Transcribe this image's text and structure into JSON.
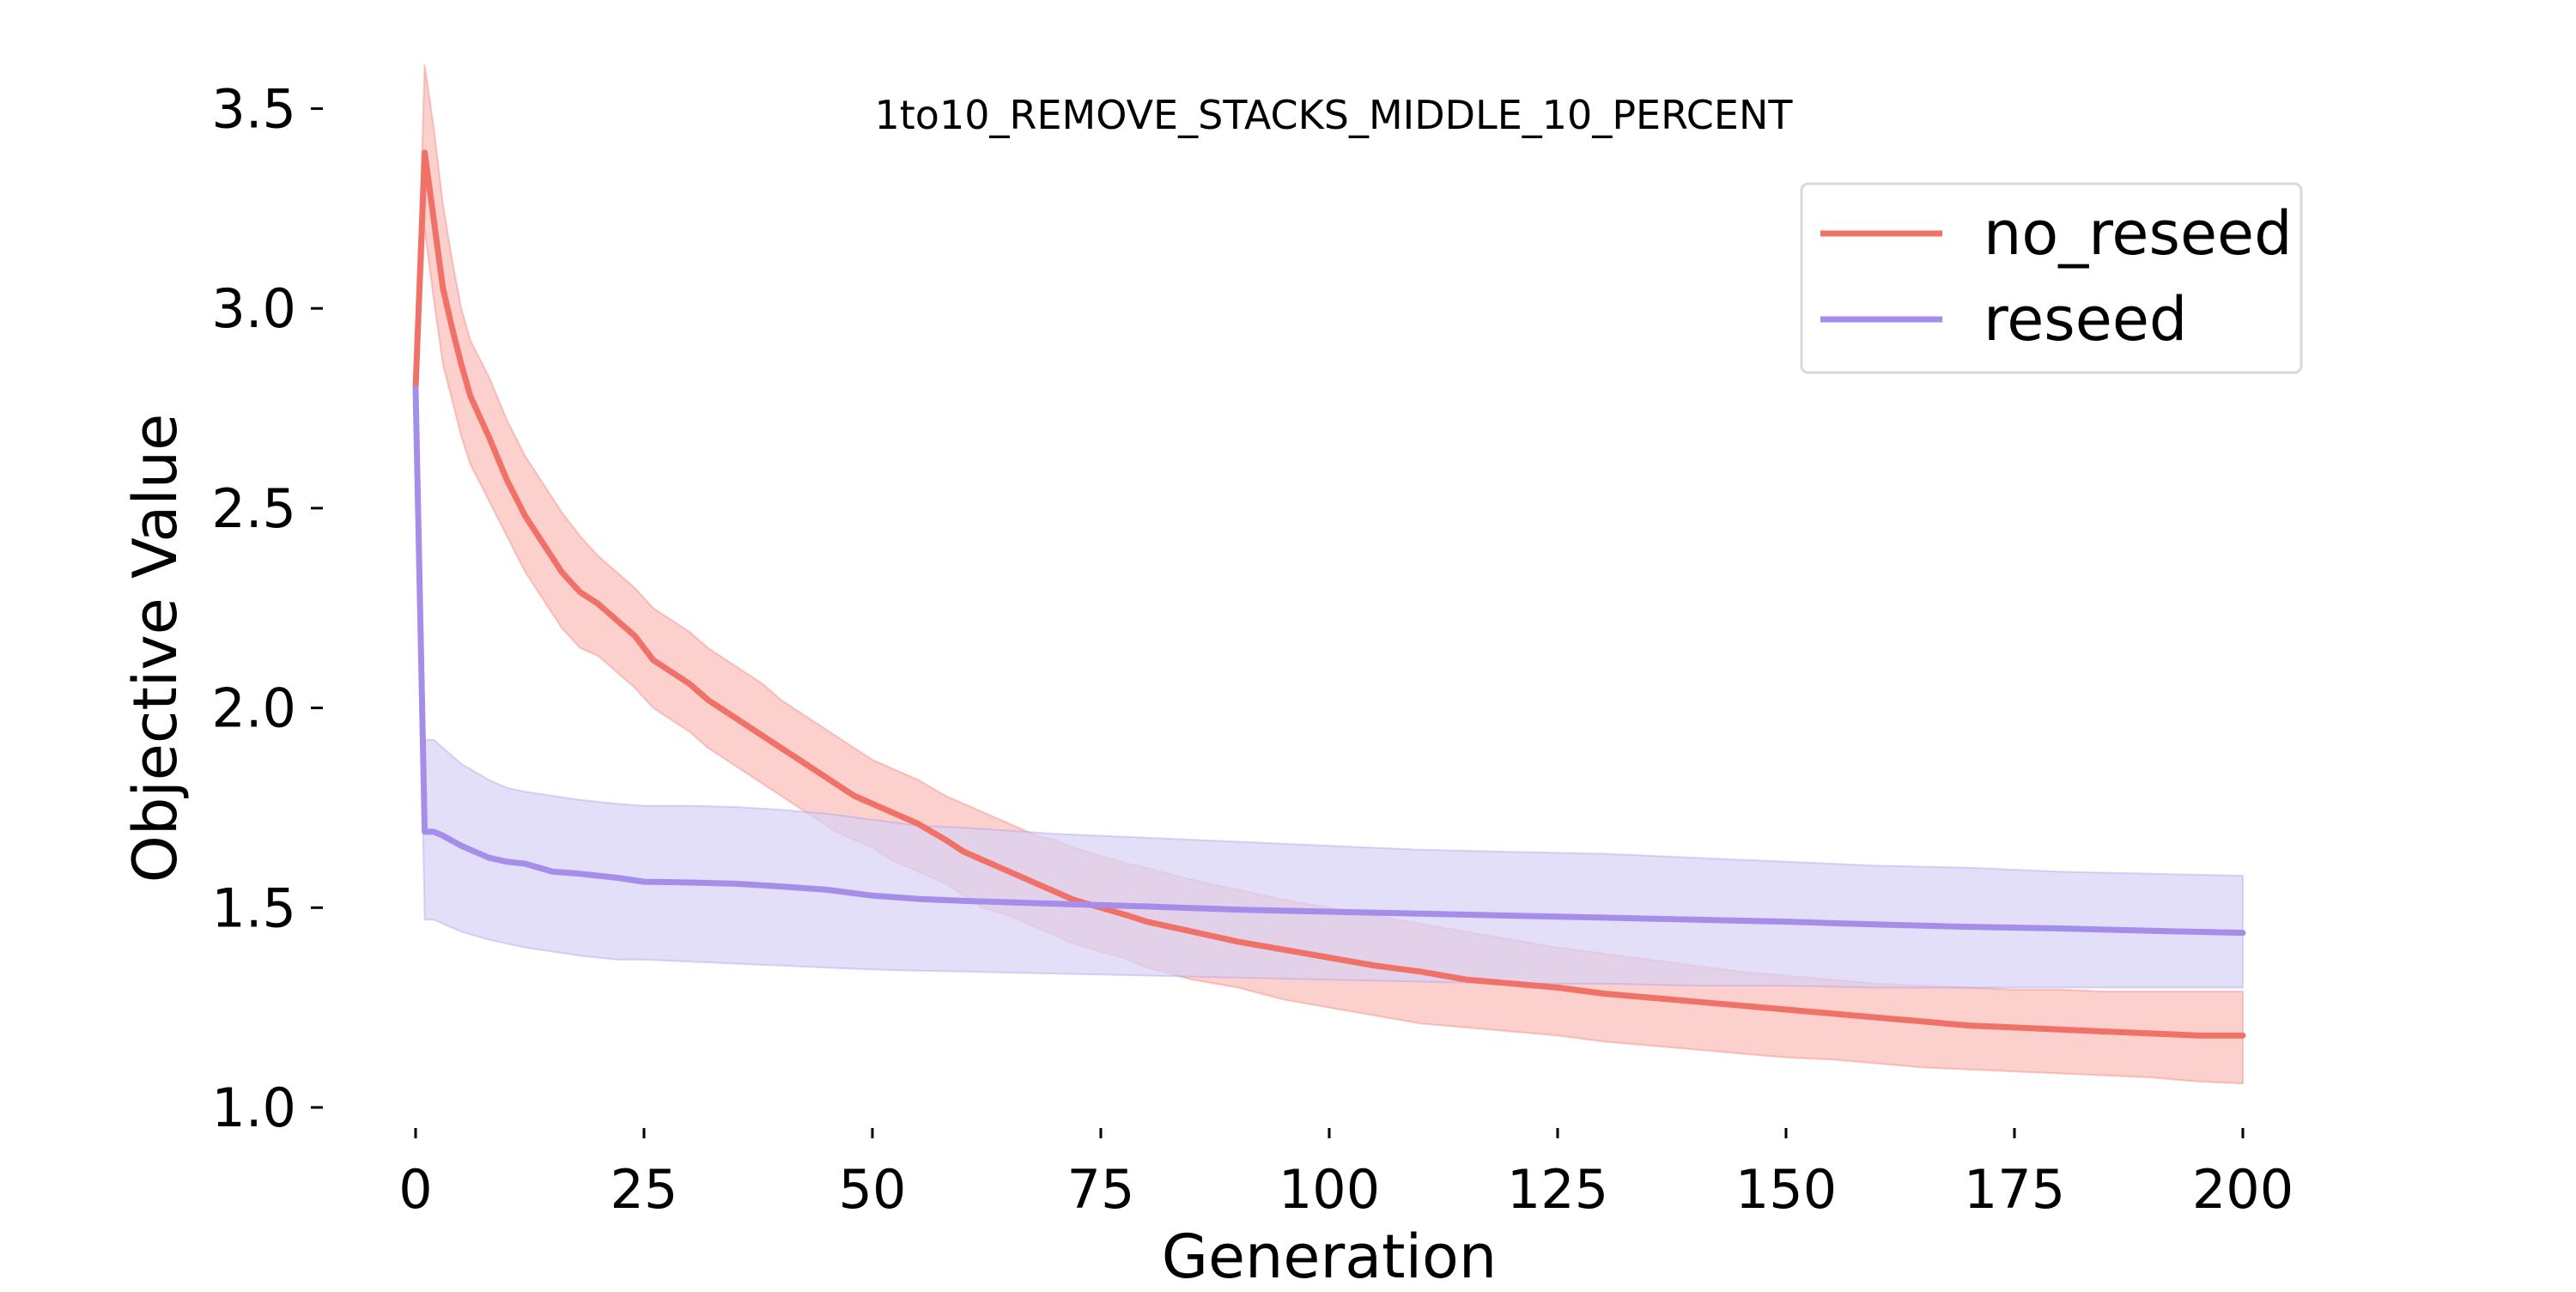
{
  "chart_data": {
    "type": "line",
    "title": "1to10_REMOVE_STACKS_MIDDLE_10_PERCENT",
    "xlabel": "Generation",
    "ylabel": "Objective Value",
    "xlim": [
      0,
      200
    ],
    "ylim": [
      1.0,
      3.6
    ],
    "xticks": [
      0,
      25,
      50,
      75,
      100,
      125,
      150,
      175,
      200
    ],
    "xtick_labels": [
      "0",
      "25",
      "50",
      "75",
      "100",
      "125",
      "150",
      "175",
      "200"
    ],
    "yticks": [
      1.0,
      1.5,
      2.0,
      2.5,
      3.0,
      3.5
    ],
    "ytick_labels": [
      "1.0",
      "1.5",
      "2.0",
      "2.5",
      "3.0",
      "3.5"
    ],
    "grid": false,
    "legend_position": "top-right",
    "series": [
      {
        "name": "no_reseed",
        "color": "#f07167",
        "band_color": "#fbbcb7",
        "x": [
          0,
          1,
          2,
          3,
          4,
          5,
          6,
          8,
          10,
          12,
          14,
          16,
          18,
          20,
          22,
          24,
          26,
          28,
          30,
          32,
          34,
          36,
          38,
          40,
          42,
          44,
          46,
          48,
          50,
          52,
          55,
          58,
          60,
          62,
          65,
          68,
          70,
          72,
          75,
          78,
          80,
          85,
          90,
          95,
          100,
          105,
          110,
          115,
          120,
          125,
          130,
          135,
          140,
          145,
          150,
          155,
          160,
          165,
          170,
          175,
          180,
          185,
          190,
          195,
          200
        ],
        "values": [
          2.8,
          3.39,
          3.22,
          3.05,
          2.95,
          2.86,
          2.78,
          2.68,
          2.57,
          2.48,
          2.41,
          2.34,
          2.29,
          2.26,
          2.22,
          2.18,
          2.12,
          2.09,
          2.06,
          2.02,
          1.99,
          1.96,
          1.93,
          1.9,
          1.87,
          1.84,
          1.81,
          1.78,
          1.76,
          1.74,
          1.71,
          1.67,
          1.64,
          1.62,
          1.59,
          1.56,
          1.54,
          1.52,
          1.5,
          1.48,
          1.465,
          1.44,
          1.415,
          1.395,
          1.375,
          1.355,
          1.34,
          1.32,
          1.31,
          1.3,
          1.285,
          1.275,
          1.265,
          1.255,
          1.245,
          1.235,
          1.225,
          1.215,
          1.205,
          1.2,
          1.195,
          1.19,
          1.185,
          1.18,
          1.18
        ],
        "upper": [
          2.85,
          3.61,
          3.45,
          3.26,
          3.12,
          3.0,
          2.92,
          2.83,
          2.72,
          2.63,
          2.56,
          2.49,
          2.43,
          2.38,
          2.34,
          2.3,
          2.25,
          2.22,
          2.19,
          2.15,
          2.12,
          2.09,
          2.06,
          2.02,
          1.99,
          1.96,
          1.93,
          1.9,
          1.87,
          1.85,
          1.82,
          1.78,
          1.76,
          1.74,
          1.71,
          1.68,
          1.67,
          1.65,
          1.63,
          1.61,
          1.6,
          1.57,
          1.545,
          1.52,
          1.5,
          1.48,
          1.46,
          1.44,
          1.42,
          1.4,
          1.385,
          1.37,
          1.355,
          1.34,
          1.33,
          1.32,
          1.31,
          1.305,
          1.3,
          1.295,
          1.295,
          1.29,
          1.29,
          1.29,
          1.29
        ],
        "lower": [
          2.75,
          3.2,
          3.02,
          2.86,
          2.77,
          2.68,
          2.61,
          2.52,
          2.43,
          2.34,
          2.27,
          2.2,
          2.15,
          2.13,
          2.09,
          2.05,
          2.0,
          1.97,
          1.94,
          1.9,
          1.87,
          1.84,
          1.81,
          1.78,
          1.75,
          1.72,
          1.69,
          1.67,
          1.65,
          1.62,
          1.59,
          1.56,
          1.53,
          1.5,
          1.48,
          1.45,
          1.43,
          1.41,
          1.39,
          1.37,
          1.35,
          1.32,
          1.3,
          1.27,
          1.25,
          1.23,
          1.21,
          1.2,
          1.19,
          1.18,
          1.165,
          1.155,
          1.145,
          1.135,
          1.125,
          1.12,
          1.11,
          1.1,
          1.095,
          1.09,
          1.085,
          1.08,
          1.075,
          1.065,
          1.06
        ]
      },
      {
        "name": "reseed",
        "color": "#a48ee9",
        "band_color": "#d9d1f7",
        "x": [
          0,
          1,
          2,
          3,
          5,
          8,
          10,
          12,
          15,
          18,
          20,
          22,
          25,
          30,
          35,
          40,
          45,
          50,
          55,
          60,
          70,
          80,
          90,
          100,
          110,
          120,
          130,
          140,
          150,
          160,
          170,
          180,
          190,
          200
        ],
        "values": [
          2.8,
          1.69,
          1.69,
          1.68,
          1.655,
          1.625,
          1.615,
          1.61,
          1.59,
          1.585,
          1.58,
          1.575,
          1.565,
          1.563,
          1.56,
          1.553,
          1.545,
          1.53,
          1.522,
          1.517,
          1.51,
          1.503,
          1.495,
          1.49,
          1.485,
          1.48,
          1.475,
          1.47,
          1.465,
          1.458,
          1.452,
          1.448,
          1.442,
          1.437
        ],
        "upper": [
          2.85,
          1.92,
          1.92,
          1.9,
          1.86,
          1.82,
          1.8,
          1.79,
          1.78,
          1.77,
          1.765,
          1.76,
          1.755,
          1.755,
          1.752,
          1.745,
          1.735,
          1.72,
          1.705,
          1.7,
          1.685,
          1.675,
          1.665,
          1.655,
          1.645,
          1.64,
          1.635,
          1.625,
          1.615,
          1.605,
          1.6,
          1.59,
          1.585,
          1.58
        ],
        "lower": [
          2.75,
          1.47,
          1.47,
          1.46,
          1.44,
          1.42,
          1.41,
          1.4,
          1.39,
          1.38,
          1.375,
          1.37,
          1.37,
          1.365,
          1.36,
          1.355,
          1.35,
          1.345,
          1.342,
          1.34,
          1.335,
          1.33,
          1.325,
          1.32,
          1.315,
          1.31,
          1.31,
          1.305,
          1.305,
          1.3,
          1.3,
          1.3,
          1.3,
          1.3
        ]
      }
    ]
  }
}
